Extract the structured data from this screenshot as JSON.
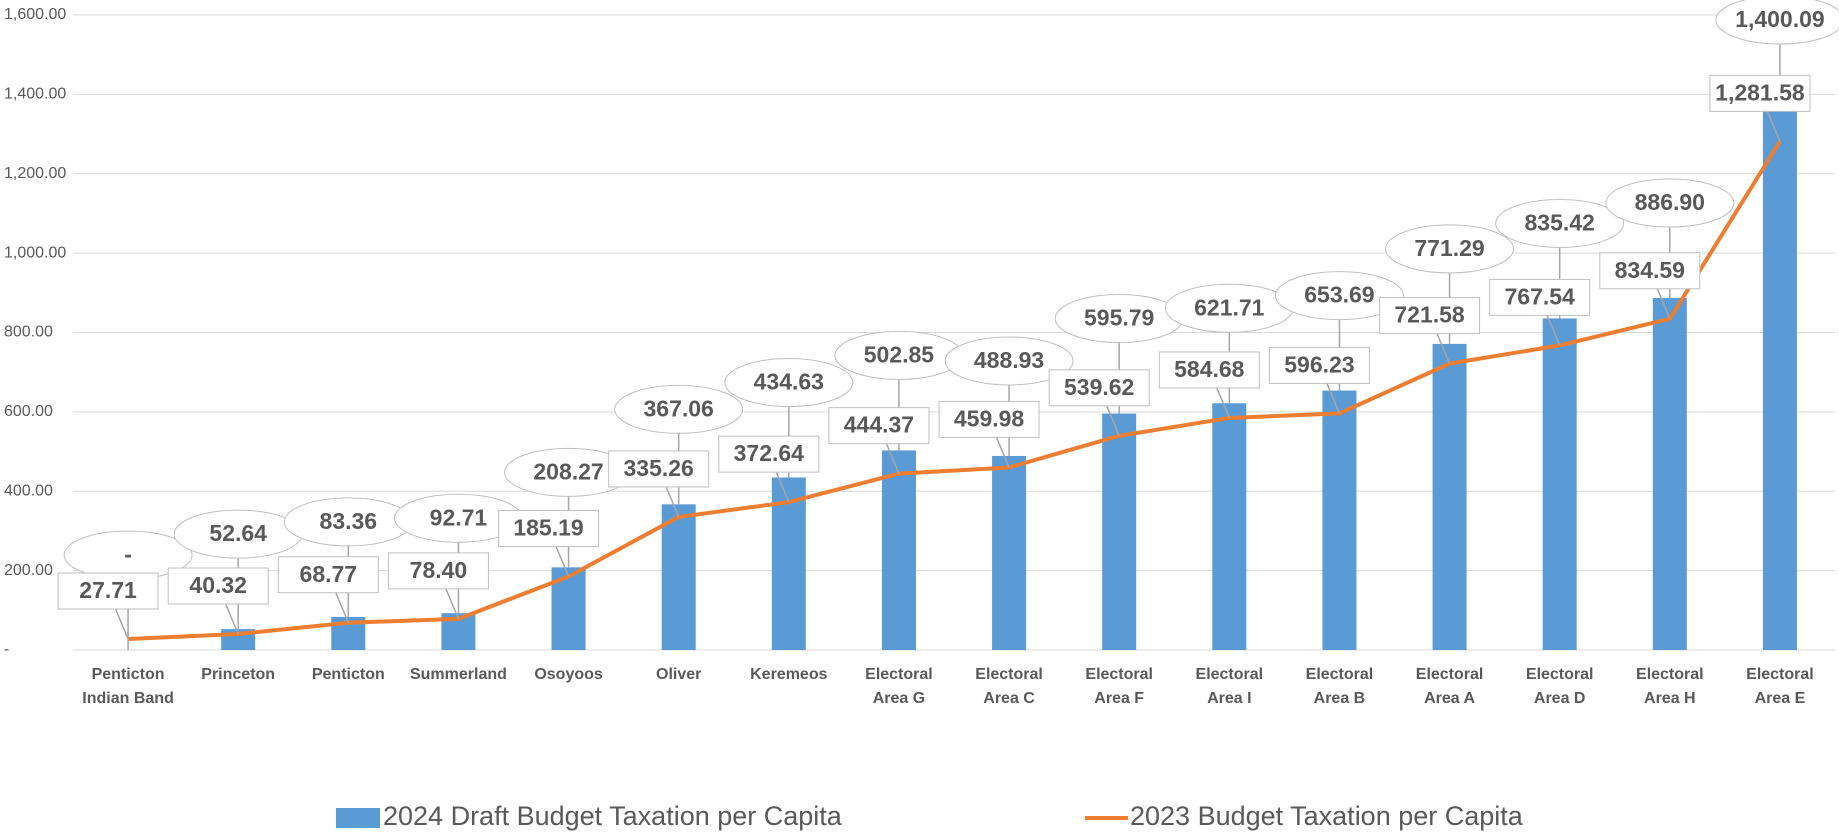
{
  "chart_data": {
    "type": "bar-line",
    "categories": [
      "Penticton Indian Band",
      "Princeton",
      "Penticton",
      "Summerland",
      "Osoyoos",
      "Oliver",
      "Keremeos",
      "Electoral Area G",
      "Electoral Area C",
      "Electoral Area F",
      "Electoral Area I",
      "Electoral Area B",
      "Electoral Area A",
      "Electoral Area D",
      "Electoral Area H",
      "Electoral Area E"
    ],
    "series": [
      {
        "name": "2024 Draft Budget Taxation per Capita",
        "type": "bar",
        "color": "#5b9bd5",
        "values": [
          0,
          52.64,
          83.36,
          92.71,
          208.27,
          367.06,
          434.63,
          502.85,
          488.93,
          595.79,
          621.71,
          653.69,
          771.29,
          835.42,
          886.9,
          1400.09
        ],
        "value_labels": [
          "-",
          "52.64",
          "83.36",
          "92.71",
          "208.27",
          "367.06",
          "434.63",
          "502.85",
          "488.93",
          "595.79",
          "621.71",
          "653.69",
          "771.29",
          "835.42",
          "886.90",
          "1,400.09"
        ]
      },
      {
        "name": "2023 Budget Taxation per Capita",
        "type": "line",
        "color": "#ed7d31",
        "values": [
          27.71,
          40.32,
          68.77,
          78.4,
          185.19,
          335.26,
          372.64,
          444.37,
          459.98,
          539.62,
          584.68,
          596.23,
          721.58,
          767.54,
          834.59,
          1281.58
        ],
        "value_labels": [
          "27.71",
          "40.32",
          "68.77",
          "78.40",
          "185.19",
          "335.26",
          "372.64",
          "444.37",
          "459.98",
          "539.62",
          "584.68",
          "596.23",
          "721.58",
          "767.54",
          "834.59",
          "1,281.58"
        ]
      }
    ],
    "ylim": [
      0,
      1600
    ],
    "yticks": [
      {
        "value": 0,
        "label": "-"
      },
      {
        "value": 200,
        "label": "200.00"
      },
      {
        "value": 400,
        "label": "400.00"
      },
      {
        "value": 600,
        "label": "600.00"
      },
      {
        "value": 800,
        "label": "800.00"
      },
      {
        "value": 1000,
        "label": "1,000.00"
      },
      {
        "value": 1200,
        "label": "1,200.00"
      },
      {
        "value": 1400,
        "label": "1,400.00"
      },
      {
        "value": 1600,
        "label": "1,600.00"
      }
    ],
    "grid": true,
    "legend": "bottom"
  }
}
